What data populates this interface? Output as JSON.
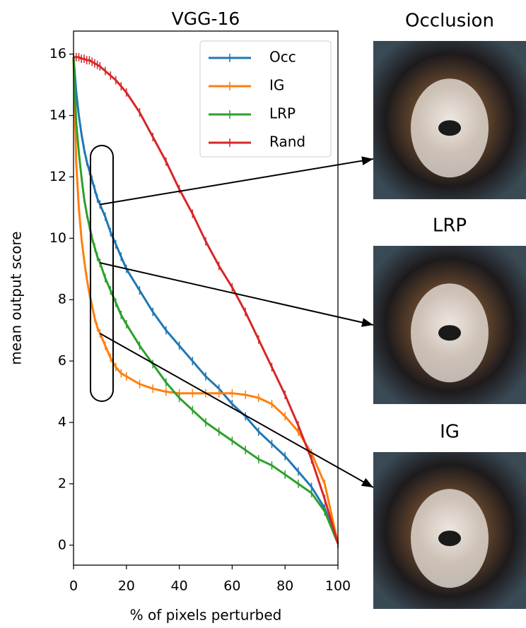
{
  "chart_data": {
    "type": "line",
    "title": "VGG-16",
    "xlabel": "% of pixels perturbed",
    "ylabel": "mean output score",
    "x": [
      0,
      1,
      2,
      3,
      4,
      5,
      6,
      7,
      8,
      9,
      10,
      12,
      14,
      16,
      18,
      20,
      25,
      30,
      35,
      40,
      45,
      50,
      55,
      60,
      65,
      70,
      75,
      80,
      85,
      90,
      95,
      100
    ],
    "series": [
      {
        "name": "Occ",
        "color": "#1f77b4",
        "values": [
          15.9,
          14.8,
          14.0,
          13.4,
          12.9,
          12.5,
          12.2,
          11.9,
          11.6,
          11.3,
          11.1,
          10.7,
          10.2,
          9.8,
          9.4,
          9.0,
          8.3,
          7.6,
          7.0,
          6.5,
          6.0,
          5.5,
          5.1,
          4.6,
          4.2,
          3.7,
          3.3,
          2.9,
          2.4,
          1.9,
          1.2,
          0.05
        ]
      },
      {
        "name": "IG",
        "color": "#ff7f0e",
        "values": [
          15.9,
          12.5,
          11.0,
          10.0,
          9.3,
          8.7,
          8.2,
          7.8,
          7.4,
          7.1,
          6.9,
          6.5,
          6.1,
          5.8,
          5.6,
          5.5,
          5.25,
          5.1,
          5.0,
          4.95,
          4.95,
          4.95,
          4.95,
          4.95,
          4.9,
          4.8,
          4.6,
          4.2,
          3.7,
          3.0,
          2.0,
          0.05
        ]
      },
      {
        "name": "LRP",
        "color": "#2ca02c",
        "values": [
          15.9,
          13.8,
          12.8,
          12.0,
          11.3,
          10.8,
          10.4,
          10.0,
          9.7,
          9.4,
          9.2,
          8.7,
          8.3,
          7.9,
          7.5,
          7.2,
          6.5,
          5.9,
          5.3,
          4.8,
          4.4,
          4.0,
          3.7,
          3.4,
          3.1,
          2.8,
          2.6,
          2.3,
          2.0,
          1.7,
          1.1,
          0.05
        ]
      },
      {
        "name": "Rand",
        "color": "#d62728",
        "values": [
          15.9,
          15.9,
          15.9,
          15.85,
          15.85,
          15.8,
          15.8,
          15.75,
          15.7,
          15.65,
          15.6,
          15.45,
          15.3,
          15.15,
          14.95,
          14.75,
          14.1,
          13.3,
          12.5,
          11.6,
          10.8,
          9.9,
          9.1,
          8.4,
          7.6,
          6.7,
          5.8,
          4.9,
          3.9,
          2.8,
          1.5,
          0.05
        ]
      }
    ],
    "xlim": [
      0,
      100
    ],
    "ylim": [
      -0.65,
      16.75
    ],
    "xticks": [
      0,
      20,
      40,
      60,
      80,
      100
    ],
    "yticks": [
      0,
      2,
      4,
      6,
      8,
      10,
      12,
      14,
      16
    ],
    "legend": "upper right",
    "image_titles": [
      "Occlusion",
      "LRP",
      "IG"
    ]
  }
}
